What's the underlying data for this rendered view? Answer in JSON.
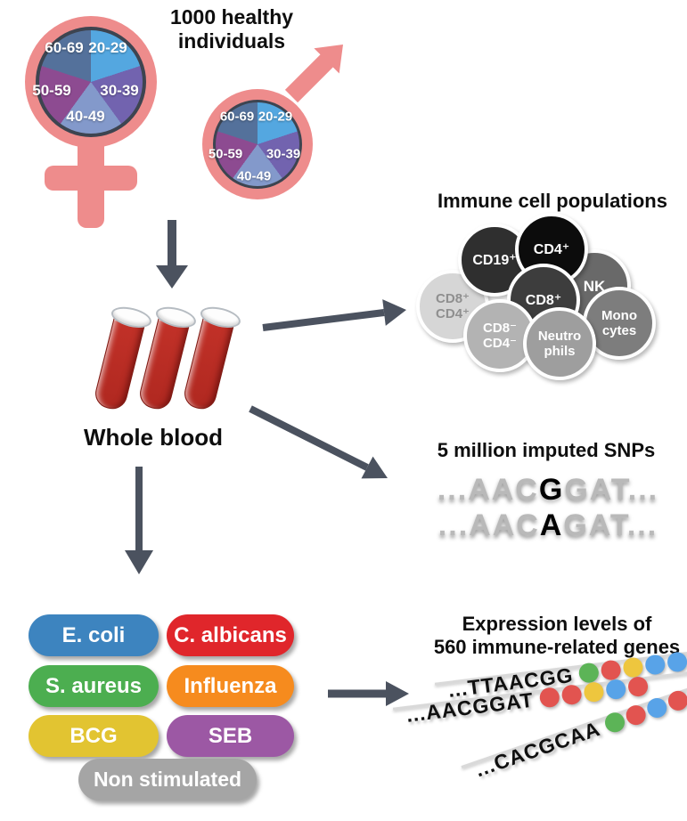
{
  "header": {
    "line1": "1000 healthy",
    "line2": "individuals"
  },
  "age_pie": {
    "slices": [
      {
        "label": "20-29",
        "color": "#54a7e0"
      },
      {
        "label": "30-39",
        "color": "#7263af"
      },
      {
        "label": "40-49",
        "color": "#8399cb"
      },
      {
        "label": "50-59",
        "color": "#8d4b91"
      },
      {
        "label": "60-69",
        "color": "#54719b"
      }
    ]
  },
  "blood": {
    "label": "Whole blood"
  },
  "immune": {
    "title": "Immune cell populations",
    "cells": [
      {
        "line1": "CD8⁺",
        "line2": "CD4⁺",
        "bg": "#d6d6d6",
        "fg": "#8f8f8f"
      },
      {
        "line1": "CD19⁺",
        "line2": "",
        "bg": "#2f2f2f",
        "fg": "#ffffff"
      },
      {
        "line1": "NK",
        "line2": "",
        "bg": "#696969",
        "fg": "#ffffff"
      },
      {
        "line1": "CD4⁺",
        "line2": "",
        "bg": "#0c0c0c",
        "fg": "#ffffff"
      },
      {
        "line1": "CD8⁺",
        "line2": "",
        "bg": "#3d3d3d",
        "fg": "#ffffff"
      },
      {
        "line1": "Mono",
        "line2": "cytes",
        "bg": "#7d7d7d",
        "fg": "#ffffff"
      },
      {
        "line1": "CD8⁻",
        "line2": "CD4⁻",
        "bg": "#b3b3b3",
        "fg": "#ffffff"
      },
      {
        "line1": "Neutro",
        "line2": "phils",
        "bg": "#9e9e9e",
        "fg": "#ffffff"
      }
    ]
  },
  "snps": {
    "title": "5 million imputed SNPs",
    "rows": [
      {
        "pre": "...AAC",
        "variant": "G",
        "post": "GAT..."
      },
      {
        "pre": "...AAC",
        "variant": "A",
        "post": "GAT..."
      }
    ]
  },
  "stimuli": {
    "items": [
      {
        "label": "E. coli",
        "color": "#3d84bf"
      },
      {
        "label": "C. albicans",
        "color": "#e0262b"
      },
      {
        "label": "S. aureus",
        "color": "#4cae50"
      },
      {
        "label": "Influenza",
        "color": "#f68b1e"
      },
      {
        "label": "BCG",
        "color": "#e2c431"
      },
      {
        "label": "SEB",
        "color": "#9c58a4"
      },
      {
        "label": "Non stimulated",
        "color": "#a5a5a5"
      }
    ]
  },
  "expression": {
    "title_line1": "Expression levels of",
    "title_line2": "560 immune-related genes",
    "rows": [
      {
        "seq": "...TTAACGG",
        "dots": [
          "#5cb457",
          "#e25450",
          "#eec63e",
          "#58a3e8",
          "#58a3e8"
        ]
      },
      {
        "seq": "...AACGGAT",
        "dots": [
          "#e25450",
          "#e25450",
          "#eec63e",
          "#58a3e8",
          "#e25450"
        ]
      },
      {
        "seq": "...CACGCAA",
        "dots": [
          "#5cb457",
          "#e25450",
          "#58a3e8",
          "#e25450",
          "#e25450"
        ]
      }
    ]
  },
  "colors": {
    "arrow": "#4b525f",
    "symbol_pink": "#ee8c8c",
    "ring_dark": "#3d4450",
    "tube_red": "#b02820"
  }
}
